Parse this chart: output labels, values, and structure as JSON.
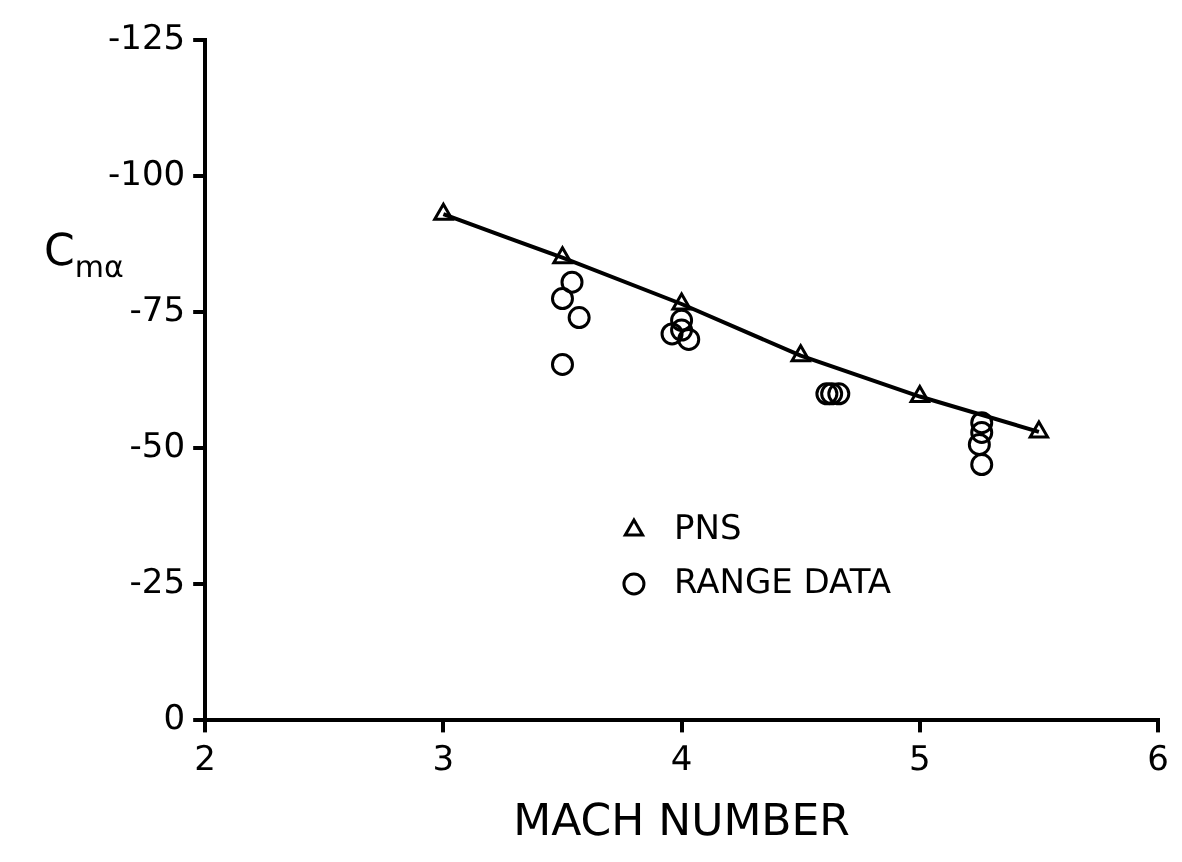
{
  "chart_data": {
    "type": "scatter",
    "xlabel": "MACH NUMBER",
    "ylabel": "C$_{mα}$",
    "xlim": [
      2,
      6
    ],
    "xticks": [
      2,
      3,
      4,
      5,
      6
    ],
    "ylim": [
      0,
      -125
    ],
    "yticks": [
      0,
      -25,
      -50,
      -75,
      -100,
      -125
    ],
    "grid": false,
    "legend": "bottom right",
    "series": [
      {
        "name": "PNS",
        "type": "line",
        "marker": "triangle",
        "color": "#000000",
        "x": [
          3,
          3.5,
          4,
          4.5,
          5,
          5.5
        ],
        "values": [
          -93,
          -85,
          -76.5,
          -67,
          -59.5,
          -53
        ]
      },
      {
        "name": "RANGE DATA",
        "type": "scatter",
        "marker": "circle",
        "color": "#000000",
        "x": [
          3.5,
          3.54,
          3.57,
          3.5,
          3.96,
          4.0,
          4.03,
          4.0,
          4.61,
          4.63,
          4.66,
          5.26,
          5.26,
          5.25,
          5.26
        ],
        "values": [
          -77.5,
          -80.5,
          -74,
          -65.4,
          -71,
          -71.7,
          -70,
          -73.5,
          -60,
          -60,
          -60,
          -54.7,
          -52.9,
          -50.7,
          -47
        ]
      }
    ]
  }
}
